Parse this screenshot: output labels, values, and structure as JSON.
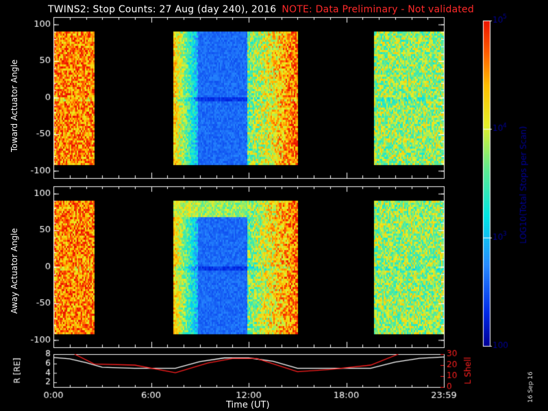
{
  "title": {
    "main": "TWINS2: Stop Counts: 27 Aug (day 240), 2016",
    "note": "NOTE: Data Preliminary - Not validated"
  },
  "stamp": "16 Sep 16",
  "xlabel": "Time (UT)",
  "colors": {
    "note": "#ff2a2a",
    "lshell": "#ff2020",
    "radius": "#ffffff",
    "axes": "#ffffff"
  },
  "chart_data": [
    {
      "type": "heatmap",
      "panel": "toward",
      "ylabel": "Toward Actuator Angle",
      "x_unit": "hours UT",
      "xlim": [
        0,
        24
      ],
      "ylim": [
        -110,
        110
      ],
      "yticks": [
        100,
        50,
        0,
        -50,
        -100
      ],
      "xticks": [
        "0:00",
        "6:00",
        "12:00",
        "18:00",
        "23:59"
      ],
      "data_y_range": [
        -90,
        90
      ],
      "segments": [
        {
          "start": 0.0,
          "end": 2.5,
          "level": "high"
        },
        {
          "start": 7.35,
          "end": 15.0,
          "level": "mixed",
          "low_core": [
            8.8,
            11.9
          ]
        },
        {
          "start": 19.7,
          "end": 24.0,
          "level": "high"
        }
      ]
    },
    {
      "type": "heatmap",
      "panel": "away",
      "ylabel": "Away Actuator Angle",
      "x_unit": "hours UT",
      "xlim": [
        0,
        24
      ],
      "ylim": [
        -110,
        110
      ],
      "yticks": [
        100,
        50,
        0,
        -50,
        -100
      ],
      "xticks": [
        "0:00",
        "6:00",
        "12:00",
        "18:00",
        "23:59"
      ],
      "data_y_range": [
        -90,
        90
      ],
      "segments": [
        {
          "start": 0.0,
          "end": 2.5,
          "level": "high"
        },
        {
          "start": 7.35,
          "end": 15.0,
          "level": "mixed",
          "low_core": [
            8.8,
            11.9
          ]
        },
        {
          "start": 19.7,
          "end": 24.0,
          "level": "high"
        }
      ]
    },
    {
      "type": "colorbar",
      "label": "LOG10(Total Stops per Scan)",
      "scale": "log",
      "range": [
        100,
        100000
      ],
      "ticks": [
        "10^5",
        "10^4",
        "10^3",
        "100"
      ]
    },
    {
      "type": "line",
      "panel": "orbit",
      "ylabel_left": "R [RE]",
      "ylabel_right": "L Shell",
      "ylim_left": [
        1,
        8
      ],
      "yticks_left": [
        8,
        6,
        4,
        2
      ],
      "ylim_right": [
        0,
        30
      ],
      "yticks_right": [
        30,
        20,
        10,
        0
      ],
      "xticks": [
        "0:00",
        "6:00",
        "12:00",
        "18:00",
        "23:59"
      ],
      "series": [
        {
          "axis": "left",
          "x": [
            0,
            1,
            2,
            3,
            5,
            7.5,
            9,
            10.5,
            12,
            13.5,
            15,
            16.5,
            18,
            19.5,
            21,
            22.5,
            24
          ],
          "y": [
            7.3,
            7.0,
            6.2,
            5.2,
            5.0,
            5.0,
            6.4,
            7.2,
            7.2,
            6.5,
            5.0,
            5.0,
            5.0,
            5.0,
            6.3,
            7.1,
            7.4
          ]
        },
        {
          "axis": "right",
          "x": [
            1.3,
            2.5,
            5,
            7.5,
            9.5,
            11,
            12.5,
            15,
            17,
            19.5,
            21.2
          ],
          "y": [
            30,
            21,
            20,
            13,
            22,
            26,
            26,
            14,
            16,
            20,
            30
          ]
        }
      ]
    }
  ]
}
